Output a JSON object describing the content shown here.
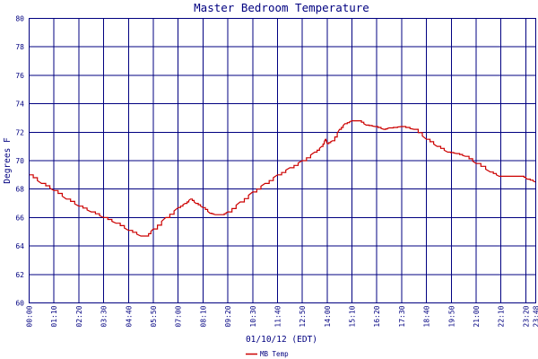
{
  "chart_data": {
    "type": "line",
    "title": "Master Bedroom Temperature",
    "xlabel": "01/10/12 (EDT)",
    "ylabel": "Degrees F",
    "ylim": [
      60,
      80
    ],
    "y_ticks": [
      60,
      62,
      64,
      66,
      68,
      70,
      72,
      74,
      76,
      78,
      80
    ],
    "x_ticks": [
      "00:00",
      "01:10",
      "02:20",
      "03:30",
      "04:40",
      "05:50",
      "07:00",
      "08:10",
      "09:20",
      "10:30",
      "11:40",
      "12:50",
      "14:00",
      "15:10",
      "16:20",
      "17:30",
      "18:40",
      "19:50",
      "21:00",
      "22:10",
      "23:20",
      "23:48"
    ],
    "xlim_minutes": [
      0,
      1428
    ],
    "grid": true,
    "legend_position": "bottom-center",
    "line_color": "#cc0000",
    "grid_color": "#000080",
    "series": [
      {
        "name": "MB Temp",
        "x_minutes": [
          0,
          35,
          70,
          105,
          140,
          175,
          210,
          245,
          280,
          315,
          330,
          350,
          385,
          420,
          440,
          455,
          470,
          490,
          510,
          525,
          545,
          560,
          595,
          630,
          665,
          700,
          735,
          770,
          805,
          825,
          835,
          840,
          855,
          875,
          890,
          910,
          930,
          950,
          975,
          1000,
          1015,
          1050,
          1085,
          1120,
          1150,
          1180,
          1205,
          1230,
          1260,
          1300,
          1325,
          1345,
          1365,
          1390,
          1405,
          1428
        ],
        "values": [
          69.0,
          68.4,
          67.9,
          67.3,
          66.8,
          66.4,
          66.0,
          65.6,
          65.1,
          64.7,
          64.7,
          65.2,
          66.0,
          66.7,
          67.0,
          67.3,
          67.0,
          66.7,
          66.3,
          66.2,
          66.2,
          66.4,
          67.1,
          67.8,
          68.4,
          69.0,
          69.5,
          70.0,
          70.6,
          71.0,
          71.5,
          71.2,
          71.4,
          72.2,
          72.6,
          72.8,
          72.8,
          72.5,
          72.4,
          72.2,
          72.3,
          72.4,
          72.2,
          71.5,
          71.0,
          70.6,
          70.5,
          70.3,
          69.8,
          69.2,
          68.9,
          68.9,
          68.9,
          68.9,
          68.7,
          68.5
        ]
      }
    ]
  }
}
